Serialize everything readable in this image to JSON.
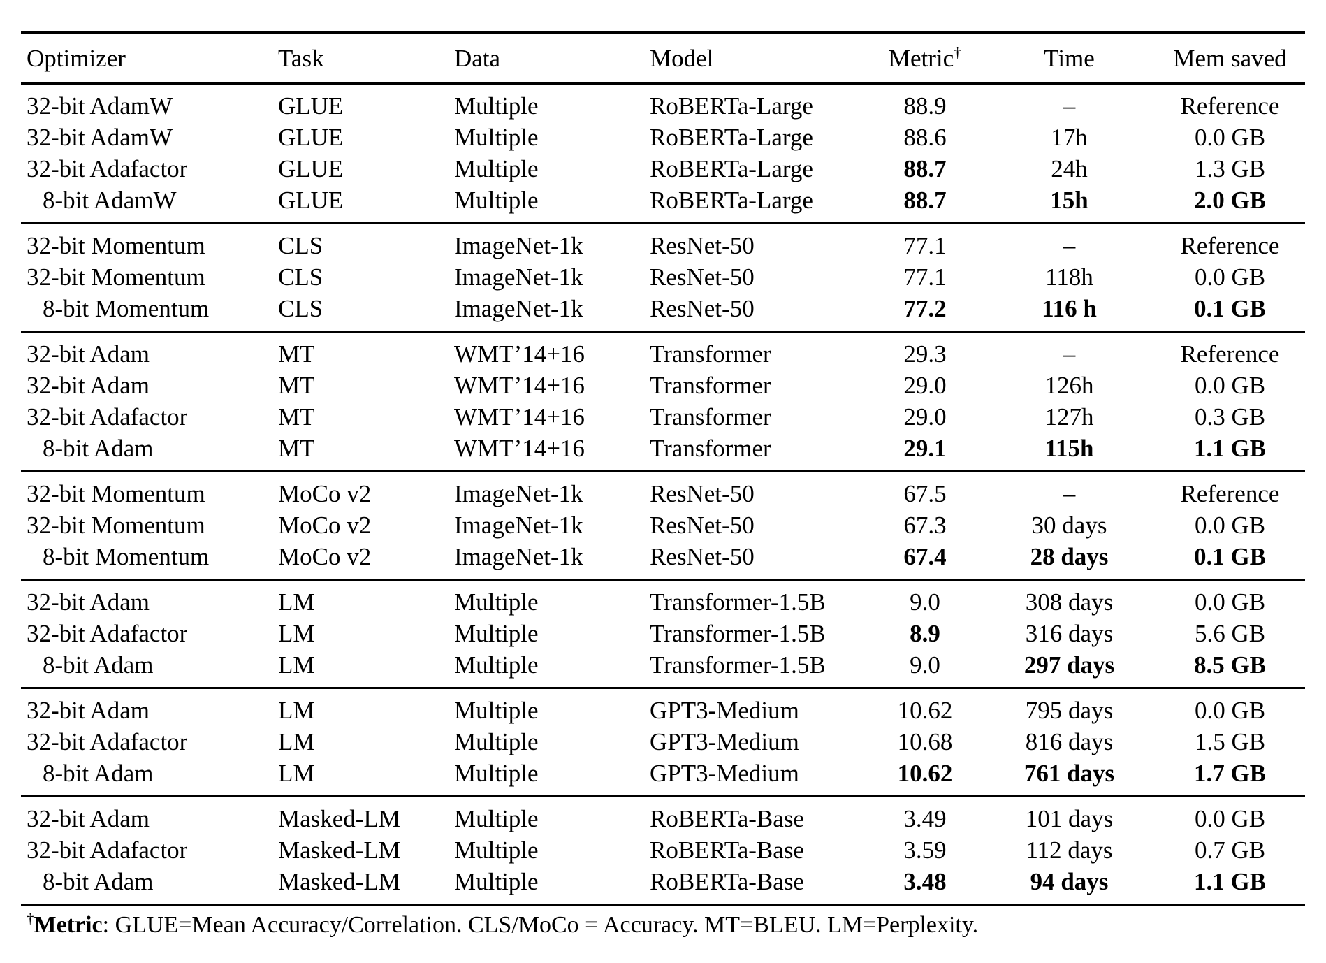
{
  "table": {
    "columns": [
      {
        "key": "optimizer",
        "label": "Optimizer",
        "align": "left"
      },
      {
        "key": "task",
        "label": "Task",
        "align": "left"
      },
      {
        "key": "data",
        "label": "Data",
        "align": "left"
      },
      {
        "key": "model",
        "label": "Model",
        "align": "left"
      },
      {
        "key": "metric",
        "label": "Metric",
        "sup": "†",
        "align": "center"
      },
      {
        "key": "time",
        "label": "Time",
        "align": "center"
      },
      {
        "key": "mem_saved",
        "label": "Mem saved",
        "align": "center"
      }
    ],
    "groups": [
      {
        "rows": [
          {
            "cells": [
              "32-bit AdamW",
              "GLUE",
              "Multiple",
              "RoBERTa-Large",
              "88.9",
              "–",
              "Reference"
            ],
            "bold": []
          },
          {
            "cells": [
              "32-bit AdamW",
              "GLUE",
              "Multiple",
              "RoBERTa-Large",
              "88.6",
              "17h",
              "0.0 GB"
            ],
            "bold": []
          },
          {
            "cells": [
              "32-bit Adafactor",
              "GLUE",
              "Multiple",
              "RoBERTa-Large",
              "88.7",
              "24h",
              "1.3 GB"
            ],
            "bold": [
              4
            ]
          },
          {
            "cells": [
              "8-bit AdamW",
              "GLUE",
              "Multiple",
              "RoBERTa-Large",
              "88.7",
              "15h",
              "2.0 GB"
            ],
            "bold": [
              4,
              5,
              6
            ]
          }
        ]
      },
      {
        "rows": [
          {
            "cells": [
              "32-bit Momentum",
              "CLS",
              "ImageNet-1k",
              "ResNet-50",
              "77.1",
              "–",
              "Reference"
            ],
            "bold": []
          },
          {
            "cells": [
              "32-bit Momentum",
              "CLS",
              "ImageNet-1k",
              "ResNet-50",
              "77.1",
              "118h",
              "0.0 GB"
            ],
            "bold": []
          },
          {
            "cells": [
              "8-bit Momentum",
              "CLS",
              "ImageNet-1k",
              "ResNet-50",
              "77.2",
              "116 h",
              "0.1 GB"
            ],
            "bold": [
              4,
              5,
              6
            ]
          }
        ]
      },
      {
        "rows": [
          {
            "cells": [
              "32-bit Adam",
              "MT",
              "WMT’14+16",
              "Transformer",
              "29.3",
              "–",
              "Reference"
            ],
            "bold": []
          },
          {
            "cells": [
              "32-bit Adam",
              "MT",
              "WMT’14+16",
              "Transformer",
              "29.0",
              "126h",
              "0.0 GB"
            ],
            "bold": []
          },
          {
            "cells": [
              "32-bit Adafactor",
              "MT",
              "WMT’14+16",
              "Transformer",
              "29.0",
              "127h",
              "0.3 GB"
            ],
            "bold": []
          },
          {
            "cells": [
              "8-bit Adam",
              "MT",
              "WMT’14+16",
              "Transformer",
              "29.1",
              "115h",
              "1.1 GB"
            ],
            "bold": [
              4,
              5,
              6
            ]
          }
        ]
      },
      {
        "rows": [
          {
            "cells": [
              "32-bit Momentum",
              "MoCo v2",
              "ImageNet-1k",
              "ResNet-50",
              "67.5",
              "–",
              "Reference"
            ],
            "bold": []
          },
          {
            "cells": [
              "32-bit Momentum",
              "MoCo v2",
              "ImageNet-1k",
              "ResNet-50",
              "67.3",
              "30 days",
              "0.0 GB"
            ],
            "bold": []
          },
          {
            "cells": [
              "8-bit Momentum",
              "MoCo v2",
              "ImageNet-1k",
              "ResNet-50",
              "67.4",
              "28 days",
              "0.1 GB"
            ],
            "bold": [
              4,
              5,
              6
            ]
          }
        ]
      },
      {
        "rows": [
          {
            "cells": [
              "32-bit Adam",
              "LM",
              "Multiple",
              "Transformer-1.5B",
              "9.0",
              "308 days",
              "0.0 GB"
            ],
            "bold": []
          },
          {
            "cells": [
              "32-bit Adafactor",
              "LM",
              "Multiple",
              "Transformer-1.5B",
              "8.9",
              "316 days",
              "5.6 GB"
            ],
            "bold": [
              4
            ]
          },
          {
            "cells": [
              "8-bit Adam",
              "LM",
              "Multiple",
              "Transformer-1.5B",
              "9.0",
              "297 days",
              "8.5 GB"
            ],
            "bold": [
              5,
              6
            ]
          }
        ]
      },
      {
        "rows": [
          {
            "cells": [
              "32-bit Adam",
              "LM",
              "Multiple",
              "GPT3-Medium",
              "10.62",
              "795 days",
              "0.0 GB"
            ],
            "bold": []
          },
          {
            "cells": [
              "32-bit Adafactor",
              "LM",
              "Multiple",
              "GPT3-Medium",
              "10.68",
              "816 days",
              "1.5 GB"
            ],
            "bold": []
          },
          {
            "cells": [
              "8-bit Adam",
              "LM",
              "Multiple",
              "GPT3-Medium",
              "10.62",
              "761 days",
              "1.7 GB"
            ],
            "bold": [
              4,
              5,
              6
            ]
          }
        ]
      },
      {
        "rows": [
          {
            "cells": [
              "32-bit Adam",
              "Masked-LM",
              "Multiple",
              "RoBERTa-Base",
              "3.49",
              "101 days",
              "0.0 GB"
            ],
            "bold": []
          },
          {
            "cells": [
              "32-bit Adafactor",
              "Masked-LM",
              "Multiple",
              "RoBERTa-Base",
              "3.59",
              "112 days",
              "0.7 GB"
            ],
            "bold": []
          },
          {
            "cells": [
              "8-bit Adam",
              "Masked-LM",
              "Multiple",
              "RoBERTa-Base",
              "3.48",
              "94 days",
              "1.1 GB"
            ],
            "bold": [
              4,
              5,
              6
            ]
          }
        ]
      }
    ],
    "footnote": {
      "dagger": "†",
      "label": "Metric",
      "text": ": GLUE=Mean Accuracy/Correlation. CLS/MoCo = Accuracy. MT=BLEU. LM=Perplexity."
    }
  }
}
